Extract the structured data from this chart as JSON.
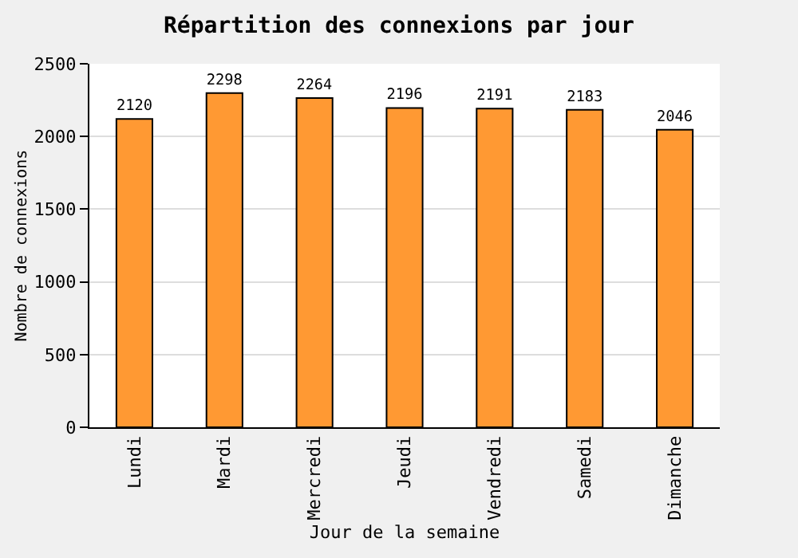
{
  "chart_data": {
    "type": "bar",
    "title": "Répartition des connexions par jour",
    "xlabel": "Jour de la semaine",
    "ylabel": "Nombre de connexions",
    "categories": [
      "Lundi",
      "Mardi",
      "Mercredi",
      "Jeudi",
      "Vendredi",
      "Samedi",
      "Dimanche"
    ],
    "values": [
      2120,
      2298,
      2264,
      2196,
      2191,
      2183,
      2046
    ],
    "color": "#ff9933",
    "ylim": [
      0,
      2500
    ],
    "yticks": [
      0,
      500,
      1000,
      1500,
      2000,
      2500
    ],
    "grid": "y",
    "data_labels": true,
    "legend": false
  }
}
